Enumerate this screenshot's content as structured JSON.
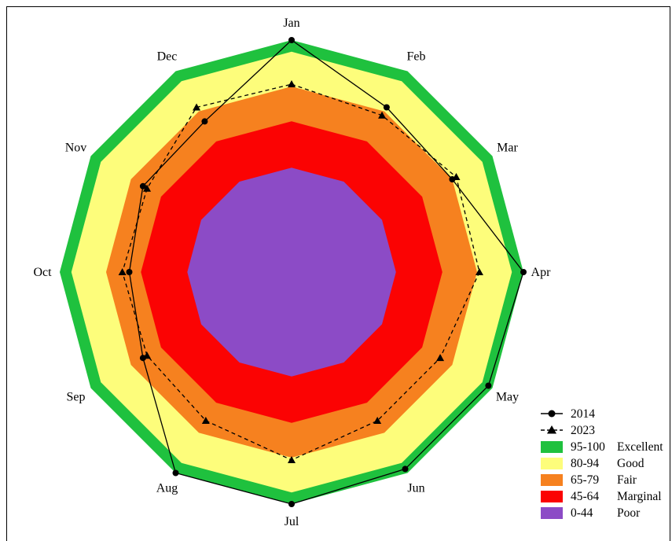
{
  "chart_data": {
    "type": "radar",
    "categories": [
      "Jan",
      "Feb",
      "Mar",
      "Apr",
      "May",
      "Jun",
      "Jul",
      "Aug",
      "Sep",
      "Oct",
      "Nov",
      "Dec"
    ],
    "rlim": [
      0,
      100
    ],
    "bands": [
      {
        "range": "95-100",
        "label": "Excellent",
        "min": 95,
        "max": 100,
        "color": "#1fc13e"
      },
      {
        "range": "80-94",
        "label": "Good",
        "min": 80,
        "max": 94,
        "color": "#fdfd7b"
      },
      {
        "range": "65-79",
        "label": "Fair",
        "min": 65,
        "max": 79,
        "color": "#f6811f"
      },
      {
        "range": "45-64",
        "label": "Marginal",
        "min": 45,
        "max": 64,
        "color": "#fb0303"
      },
      {
        "range": "0-44",
        "label": "Poor",
        "min": 0,
        "max": 44,
        "color": "#8c4bc6"
      }
    ],
    "series": [
      {
        "name": "2014",
        "marker": "circle",
        "line": "solid",
        "values": [
          100,
          82,
          80,
          100,
          98,
          98,
          100,
          100,
          74,
          70,
          74,
          75
        ]
      },
      {
        "name": "2023",
        "marker": "triangle",
        "line": "dashed",
        "values": [
          81,
          78,
          82,
          81,
          74,
          74,
          81,
          74,
          72,
          73,
          72,
          82
        ]
      }
    ],
    "legend_position": "bottom-right"
  }
}
